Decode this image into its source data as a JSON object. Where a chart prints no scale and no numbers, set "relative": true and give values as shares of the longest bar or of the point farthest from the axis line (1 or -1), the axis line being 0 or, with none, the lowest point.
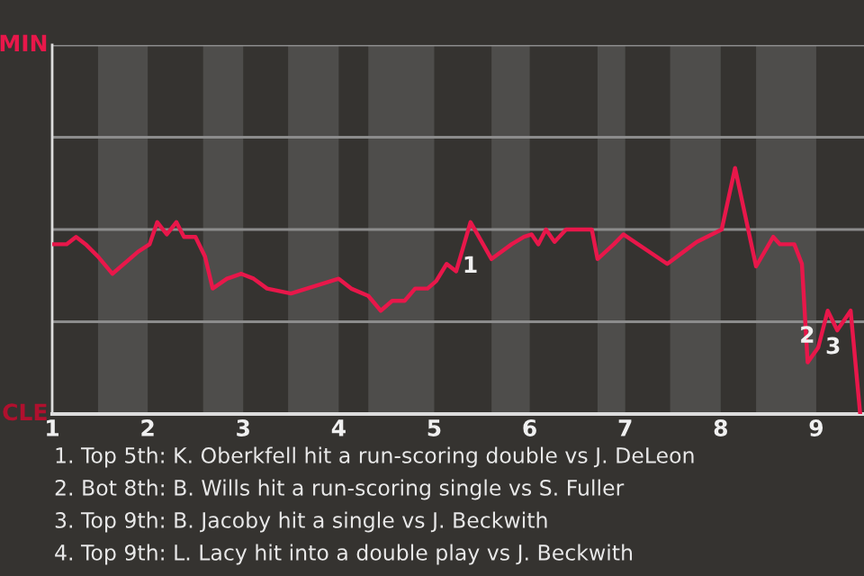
{
  "chart_data": {
    "type": "line",
    "relative": true,
    "x": [
      1.0,
      1.15,
      1.25,
      1.35,
      1.48,
      1.63,
      1.9,
      2.02,
      2.1,
      2.2,
      2.3,
      2.38,
      2.5,
      2.6,
      2.68,
      2.83,
      2.98,
      3.11,
      3.25,
      3.5,
      3.75,
      4.0,
      4.13,
      4.31,
      4.44,
      4.56,
      4.69,
      4.8,
      4.93,
      5.02,
      5.13,
      5.23,
      5.38,
      5.6,
      5.81,
      5.94,
      6.02,
      6.09,
      6.17,
      6.26,
      6.38,
      6.65,
      6.71,
      6.88,
      6.98,
      7.44,
      7.75,
      8.01,
      8.15,
      8.37,
      8.55,
      8.62,
      8.77,
      8.85,
      8.91,
      9.02,
      9.12,
      9.22,
      9.36,
      9.46
    ],
    "series": [
      {
        "color": "#e8174a",
        "values": [
          0.69,
          0.69,
          0.72,
          0.69,
          0.64,
          0.57,
          0.66,
          0.69,
          0.78,
          0.73,
          0.78,
          0.72,
          0.72,
          0.64,
          0.51,
          0.55,
          0.57,
          0.55,
          0.51,
          0.49,
          0.52,
          0.55,
          0.51,
          0.48,
          0.42,
          0.46,
          0.46,
          0.51,
          0.51,
          0.54,
          0.61,
          0.58,
          0.78,
          0.63,
          0.69,
          0.72,
          0.73,
          0.69,
          0.75,
          0.7,
          0.75,
          0.75,
          0.63,
          0.69,
          0.73,
          0.61,
          0.7,
          0.75,
          1,
          0.6,
          0.72,
          0.69,
          0.69,
          0.61,
          0.21,
          0.27,
          0.42,
          0.34,
          0.42,
          0
        ]
      }
    ],
    "xlim": [
      1,
      9.5
    ],
    "ref_lines": [
      {
        "axis": "y",
        "value": 0.375,
        "color": "#8c8c8c"
      },
      {
        "axis": "y",
        "value": 0.75,
        "color": "#8c8c8c"
      }
    ],
    "xticks": [
      1,
      2,
      3,
      4,
      5,
      6,
      7,
      8,
      9
    ],
    "bands": [
      {
        "axis": "x",
        "from": 1.48,
        "to": 2,
        "color": "#4e4d4b"
      },
      {
        "axis": "x",
        "from": 2.58,
        "to": 3,
        "color": "#4e4d4b"
      },
      {
        "axis": "x",
        "from": 3.47,
        "to": 4,
        "color": "#4e4d4b"
      },
      {
        "axis": "x",
        "from": 4.31,
        "to": 5,
        "color": "#4e4d4b"
      },
      {
        "axis": "x",
        "from": 5.6,
        "to": 6,
        "color": "#4e4d4b"
      },
      {
        "axis": "x",
        "from": 6.71,
        "to": 7,
        "color": "#4e4d4b"
      },
      {
        "axis": "x",
        "from": 7.47,
        "to": 8,
        "color": "#4e4d4b"
      },
      {
        "axis": "x",
        "from": 8.37,
        "to": 9,
        "color": "#4e4d4b"
      }
    ],
    "annotations": [
      "MIN",
      "CLE",
      "1",
      "2",
      "3",
      "1. Top 5th: K. Oberkfell hit a run-scoring double vs J. DeLeon",
      "2. Bot 8th: B. Wills hit a run-scoring single vs S. Fuller",
      "3. Top 9th: B. Jacoby hit a single vs J. Beckwith",
      "4. Top 9th: L. Lacy hit into a double play vs J. Beckwith"
    ]
  }
}
